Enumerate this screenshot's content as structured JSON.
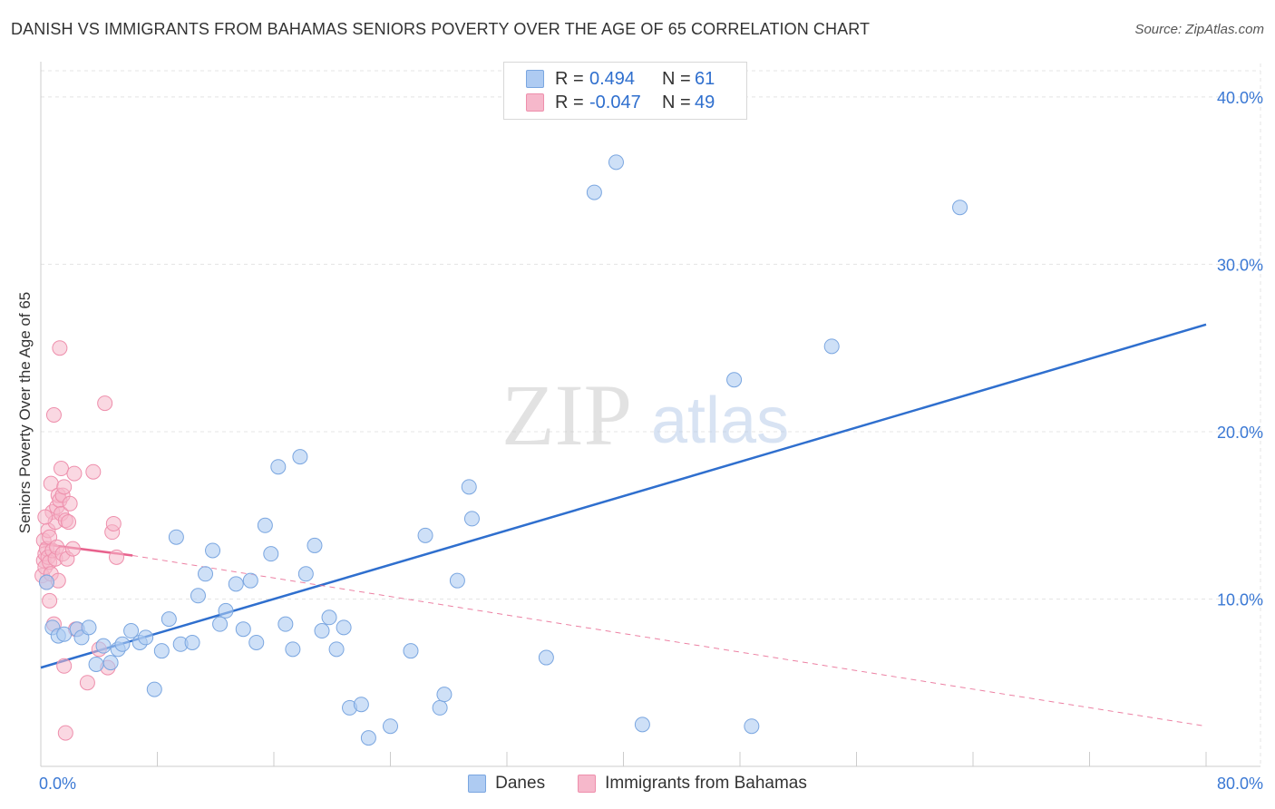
{
  "header": {
    "title": "DANISH VS IMMIGRANTS FROM BAHAMAS SENIORS POVERTY OVER THE AGE OF 65 CORRELATION CHART",
    "source": "Source: ZipAtlas.com"
  },
  "legend": {
    "rows": [
      {
        "r_label": "R =",
        "r_value": "0.494",
        "n_label": "N =",
        "n_value": "61"
      },
      {
        "r_label": "R =",
        "r_value": "-0.047",
        "n_label": "N =",
        "n_value": "49"
      }
    ]
  },
  "bottom_legend": {
    "danes": "Danes",
    "bahamas": "Immigrants from Bahamas"
  },
  "colors": {
    "danes_fill": "#aecbf2",
    "danes_stroke": "#7aa6e0",
    "danes_line": "#2f6fce",
    "bahamas_fill": "#f6b8cb",
    "bahamas_stroke": "#ee8fac",
    "bahamas_line": "#e8628d",
    "axis_label": "#3a78d4",
    "grid": "#e4e4e4",
    "watermark": "#d0d0d0"
  },
  "chart_data": {
    "type": "scatter",
    "title": "DANISH VS IMMIGRANTS FROM BAHAMAS SENIORS POVERTY OVER THE AGE OF 65 CORRELATION CHART",
    "xlabel": "",
    "ylabel": "Seniors Poverty Over the Age of 65",
    "xlim": [
      0,
      80
    ],
    "ylim": [
      0,
      42
    ],
    "x_tick_labels": [
      "0.0%",
      "80.0%"
    ],
    "y_ticks": [
      10,
      20,
      30,
      40
    ],
    "y_tick_labels": [
      "10.0%",
      "20.0%",
      "30.0%",
      "40.0%"
    ],
    "watermark": {
      "zip": "ZIP",
      "atlas": "atlas"
    },
    "series": [
      {
        "name": "Danes",
        "points": [
          [
            0.4,
            11.0
          ],
          [
            0.8,
            8.3
          ],
          [
            1.2,
            7.8
          ],
          [
            1.6,
            7.9
          ],
          [
            2.5,
            8.2
          ],
          [
            2.8,
            7.7
          ],
          [
            3.3,
            8.3
          ],
          [
            3.8,
            6.1
          ],
          [
            4.3,
            7.2
          ],
          [
            4.8,
            6.2
          ],
          [
            5.3,
            7.0
          ],
          [
            5.6,
            7.3
          ],
          [
            6.2,
            8.1
          ],
          [
            6.8,
            7.4
          ],
          [
            7.2,
            7.7
          ],
          [
            7.8,
            4.6
          ],
          [
            8.3,
            6.9
          ],
          [
            8.8,
            8.8
          ],
          [
            9.3,
            13.7
          ],
          [
            9.6,
            7.3
          ],
          [
            10.4,
            7.4
          ],
          [
            10.8,
            10.2
          ],
          [
            11.3,
            11.5
          ],
          [
            11.8,
            12.9
          ],
          [
            12.3,
            8.5
          ],
          [
            12.7,
            9.3
          ],
          [
            13.4,
            10.9
          ],
          [
            13.9,
            8.2
          ],
          [
            14.4,
            11.1
          ],
          [
            14.8,
            7.4
          ],
          [
            15.4,
            14.4
          ],
          [
            15.8,
            12.7
          ],
          [
            16.3,
            17.9
          ],
          [
            16.8,
            8.5
          ],
          [
            17.3,
            7.0
          ],
          [
            17.8,
            18.5
          ],
          [
            18.2,
            11.5
          ],
          [
            18.8,
            13.2
          ],
          [
            19.3,
            8.1
          ],
          [
            19.8,
            8.9
          ],
          [
            20.3,
            7.0
          ],
          [
            20.8,
            8.3
          ],
          [
            21.2,
            3.5
          ],
          [
            22.0,
            3.7
          ],
          [
            22.5,
            1.7
          ],
          [
            24.0,
            2.4
          ],
          [
            25.4,
            6.9
          ],
          [
            26.4,
            13.8
          ],
          [
            27.4,
            3.5
          ],
          [
            27.7,
            4.3
          ],
          [
            28.6,
            11.1
          ],
          [
            29.4,
            16.7
          ],
          [
            29.6,
            14.8
          ],
          [
            34.7,
            6.5
          ],
          [
            38.0,
            34.3
          ],
          [
            39.5,
            36.1
          ],
          [
            41.3,
            2.5
          ],
          [
            47.6,
            23.1
          ],
          [
            48.8,
            2.4
          ],
          [
            54.3,
            25.1
          ],
          [
            63.1,
            33.4
          ]
        ]
      },
      {
        "name": "Immigrants from Bahamas",
        "points": [
          [
            0.1,
            11.4
          ],
          [
            0.2,
            12.3
          ],
          [
            0.2,
            13.5
          ],
          [
            0.3,
            11.9
          ],
          [
            0.3,
            12.7
          ],
          [
            0.4,
            13.0
          ],
          [
            0.4,
            11.0
          ],
          [
            0.5,
            12.5
          ],
          [
            0.5,
            14.1
          ],
          [
            0.6,
            13.7
          ],
          [
            0.6,
            12.2
          ],
          [
            0.7,
            16.9
          ],
          [
            0.7,
            11.5
          ],
          [
            0.8,
            15.2
          ],
          [
            0.8,
            12.9
          ],
          [
            0.9,
            21.0
          ],
          [
            0.9,
            8.5
          ],
          [
            1.0,
            12.4
          ],
          [
            1.0,
            14.6
          ],
          [
            1.1,
            15.5
          ],
          [
            1.1,
            13.1
          ],
          [
            1.2,
            16.2
          ],
          [
            1.2,
            11.1
          ],
          [
            1.3,
            25.0
          ],
          [
            1.3,
            15.9
          ],
          [
            1.4,
            17.8
          ],
          [
            1.4,
            15.1
          ],
          [
            1.5,
            16.2
          ],
          [
            1.5,
            12.7
          ],
          [
            1.6,
            16.7
          ],
          [
            1.6,
            6.0
          ],
          [
            1.7,
            2.0
          ],
          [
            1.7,
            14.7
          ],
          [
            1.8,
            12.4
          ],
          [
            1.9,
            14.6
          ],
          [
            2.0,
            15.7
          ],
          [
            2.2,
            13.0
          ],
          [
            2.3,
            17.5
          ],
          [
            2.4,
            8.2
          ],
          [
            3.2,
            5.0
          ],
          [
            3.6,
            17.6
          ],
          [
            4.0,
            7.0
          ],
          [
            4.4,
            21.7
          ],
          [
            4.6,
            5.9
          ],
          [
            4.9,
            14.0
          ],
          [
            5.0,
            14.5
          ],
          [
            5.2,
            12.5
          ],
          [
            0.3,
            14.9
          ],
          [
            0.6,
            9.9
          ]
        ]
      }
    ],
    "trendlines": [
      {
        "series": "Danes",
        "x": [
          0,
          80
        ],
        "y": [
          5.9,
          26.4
        ],
        "style": "solid"
      },
      {
        "series": "Immigrants from Bahamas",
        "solid_x": [
          0,
          6.3
        ],
        "solid_y": [
          13.3,
          12.6
        ],
        "dashed_x": [
          6.3,
          80
        ],
        "dashed_y": [
          12.6,
          2.4
        ],
        "style": "solid-then-dashed"
      }
    ]
  }
}
